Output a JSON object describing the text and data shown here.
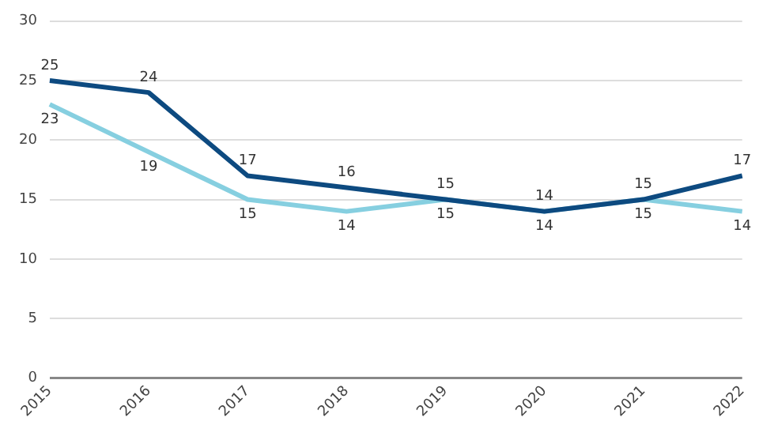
{
  "chart_data": {
    "type": "line",
    "categories": [
      "2015",
      "2016",
      "2017",
      "2018",
      "2019",
      "2020",
      "2021",
      "2022"
    ],
    "series": [
      {
        "color": "#0d4a80",
        "values": [
          25,
          24,
          17,
          16,
          15,
          14,
          15,
          17
        ]
      },
      {
        "color": "#86cfe0",
        "values": [
          23,
          19,
          15,
          14,
          15,
          14,
          15,
          14
        ]
      }
    ],
    "ylim": [
      0,
      30
    ],
    "yticks": [
      0,
      5,
      10,
      15,
      20,
      25,
      30
    ],
    "grid": "y",
    "legend": false,
    "data_labels": true,
    "marker": "none",
    "line_style": "solid"
  }
}
